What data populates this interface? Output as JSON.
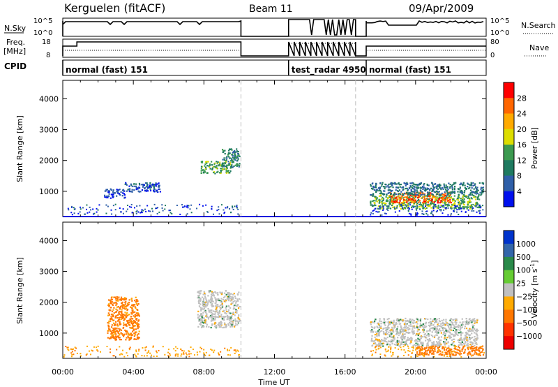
{
  "header": {
    "station": "Kerguelen (fitACF)",
    "beam": "Beam 11",
    "date": "09/Apr/2009"
  },
  "strips": {
    "nsky_label": "N.Sky",
    "nsky_ticks": [
      "10^5",
      "10^0"
    ],
    "nsearch_label": "N.Search",
    "nsearch_ticks": [
      "10^5",
      "10^0"
    ],
    "freq_label_1": "Freq.",
    "freq_label_2": "[MHz]",
    "freq_ticks": [
      "18",
      "8"
    ],
    "nave_label": "Nave",
    "nave_ticks": [
      "80",
      "0"
    ],
    "cpid_label": "CPID",
    "cpid_segments": [
      {
        "label": "normal (fast) 151",
        "start_h": 0.0,
        "end_h": 10.1
      },
      {
        "label": "test_radar 4950",
        "start_h": 12.8,
        "end_h": 16.6
      },
      {
        "label": "normal (fast) 151",
        "start_h": 17.2,
        "end_h": 24.0
      }
    ]
  },
  "power_colorbar": {
    "label": "Power [dB]",
    "ticks": [
      "28",
      "24",
      "20",
      "16",
      "12",
      "8",
      "4"
    ],
    "colors": [
      "#ff0000",
      "#ff6600",
      "#ffaa00",
      "#dddd00",
      "#3c9a50",
      "#1f7a60",
      "#2f5fa8",
      "#0010ee"
    ]
  },
  "velocity_colorbar": {
    "label": "Velocity [m s",
    "label_sup": "-1",
    "label_end": "]",
    "ticks": [
      "1000",
      "500",
      "100",
      "25",
      "−25",
      "−100",
      "−500",
      "−1000"
    ],
    "colors": [
      "#0033cc",
      "#3366aa",
      "#2a8a4a",
      "#66cc33",
      "#c0c0c0",
      "#ffaa00",
      "#ff7700",
      "#ff3300",
      "#ee0000"
    ]
  },
  "axes": {
    "ylabel": "Slant Range [km]",
    "yticks": [
      "4000",
      "3000",
      "2000",
      "1000"
    ],
    "xticks": [
      "00:00",
      "04:00",
      "08:00",
      "12:00",
      "16:00",
      "20:00",
      "00:00"
    ],
    "xlabel": "Time UT"
  },
  "chart_data": {
    "type": "heatmap",
    "x_unit": "hours UT",
    "xlim": [
      0,
      24
    ],
    "ylim": [
      180,
      4600
    ],
    "data_gaps_h": [
      10.1,
      16.6
    ],
    "power_echo_regions": [
      {
        "t0": 2.3,
        "t1": 3.5,
        "r0": 800,
        "r1": 1100,
        "db": 4
      },
      {
        "t0": 3.5,
        "t1": 5.5,
        "r0": 1000,
        "r1": 1300,
        "db": 6
      },
      {
        "t0": 7.8,
        "t1": 9.5,
        "r0": 1600,
        "r1": 2000,
        "db": 14
      },
      {
        "t0": 9.0,
        "t1": 10.0,
        "r0": 1800,
        "r1": 2400,
        "db": 10
      },
      {
        "t0": 17.4,
        "t1": 23.6,
        "r0": 450,
        "r1": 900,
        "db": 14
      },
      {
        "t0": 18.5,
        "t1": 22.0,
        "r0": 650,
        "r1": 1000,
        "db": 26
      },
      {
        "t0": 17.4,
        "t1": 23.8,
        "r0": 900,
        "r1": 1300,
        "db": 8
      }
    ],
    "velocity_echo_regions": [
      {
        "t0": 7.6,
        "t1": 10.0,
        "r0": 1200,
        "r1": 2400,
        "v": 0
      },
      {
        "t0": 17.4,
        "t1": 23.5,
        "r0": 600,
        "r1": 1500,
        "v": 0
      },
      {
        "t0": 2.5,
        "t1": 4.3,
        "r0": 800,
        "r1": 2200,
        "v": -120
      },
      {
        "t0": 20.0,
        "t1": 23.8,
        "r0": 300,
        "r1": 600,
        "v": -150
      }
    ]
  }
}
